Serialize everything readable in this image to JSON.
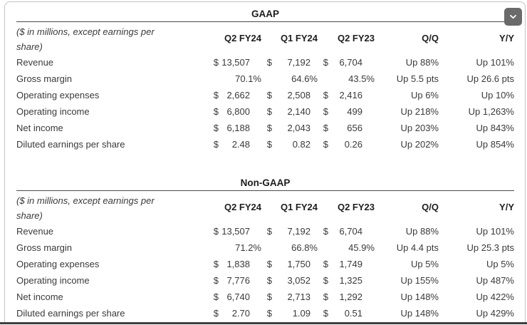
{
  "page": {
    "background": "#ffffff",
    "frame_border_color": "#c2c2c2",
    "bottom_bar_color": "#3e3e3e",
    "rule_color": "#4a4a4a",
    "text_color": "#3a3a3a"
  },
  "controls": {
    "collapse_button_icon": "chevron-down",
    "collapse_button_color": "#6a6a6a"
  },
  "tables": [
    {
      "title": "GAAP",
      "note": "($ in millions, except earnings per share)",
      "columns": [
        "Q2 FY24",
        "Q1 FY24",
        "Q2 FY23",
        "Q/Q",
        "Y/Y"
      ],
      "rows": [
        [
          "Revenue",
          "$",
          "13,507",
          "$",
          "7,192",
          "$",
          "6,704",
          "Up 88%",
          "Up 101%"
        ],
        [
          "Gross margin",
          "",
          "70.1%",
          "",
          "64.6%",
          "",
          "43.5%",
          "Up 5.5 pts",
          "Up 26.6 pts"
        ],
        [
          "Operating expenses",
          "$",
          "2,662",
          "$",
          "2,508",
          "$",
          "2,416",
          "Up 6%",
          "Up 10%"
        ],
        [
          "Operating income",
          "$",
          "6,800",
          "$",
          "2,140",
          "$",
          "499",
          "Up 218%",
          "Up 1,263%"
        ],
        [
          "Net income",
          "$",
          "6,188",
          "$",
          "2,043",
          "$",
          "656",
          "Up 203%",
          "Up 843%"
        ],
        [
          "Diluted earnings per share",
          "$",
          "2.48",
          "$",
          "0.82",
          "$",
          "0.26",
          "Up 202%",
          "Up 854%"
        ]
      ]
    },
    {
      "title": "Non-GAAP",
      "note": "($ in millions, except earnings per share)",
      "columns": [
        "Q2 FY24",
        "Q1 FY24",
        "Q2 FY23",
        "Q/Q",
        "Y/Y"
      ],
      "rows": [
        [
          "Revenue",
          "$",
          "13,507",
          "$",
          "7,192",
          "$",
          "6,704",
          "Up 88%",
          "Up 101%"
        ],
        [
          "Gross margin",
          "",
          "71.2%",
          "",
          "66.8%",
          "",
          "45.9%",
          "Up 4.4 pts",
          "Up 25.3 pts"
        ],
        [
          "Operating expenses",
          "$",
          "1,838",
          "$",
          "1,750",
          "$",
          "1,749",
          "Up 5%",
          "Up 5%"
        ],
        [
          "Operating income",
          "$",
          "7,776",
          "$",
          "3,052",
          "$",
          "1,325",
          "Up 155%",
          "Up 487%"
        ],
        [
          "Net income",
          "$",
          "6,740",
          "$",
          "2,713",
          "$",
          "1,292",
          "Up 148%",
          "Up 422%"
        ],
        [
          "Diluted earnings per share",
          "$",
          "2.70",
          "$",
          "1.09",
          "$",
          "0.51",
          "Up 148%",
          "Up 429%"
        ]
      ]
    }
  ]
}
